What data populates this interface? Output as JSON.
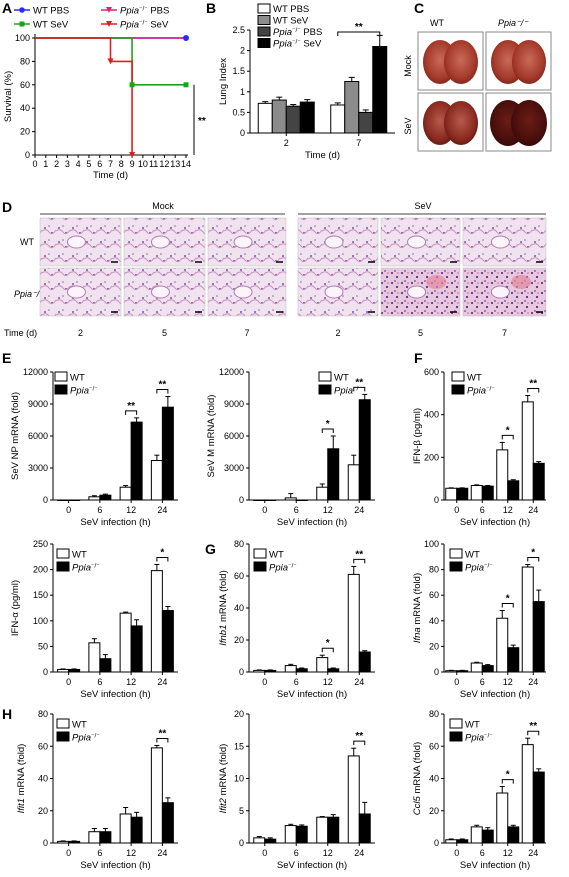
{
  "panels": {
    "A": "A",
    "B": "B",
    "C": "C",
    "D": "D",
    "E": "E",
    "F": "F",
    "G": "G",
    "H": "H"
  },
  "colors": {
    "wt_pbs": "#2a2aff",
    "wt_sev": "#1fa01f",
    "ko_pbs": "#e0207a",
    "ko_sev": "#e01e1e",
    "gray": "#8c8c8c",
    "dark": "#444444",
    "black": "#000000",
    "white": "#ffffff"
  },
  "panel_C": {
    "col_labels": [
      "WT",
      "Ppia⁻/⁻"
    ],
    "row_labels": [
      "Mock",
      "SeV"
    ]
  },
  "panel_D": {
    "groups": [
      "Mock",
      "SeV"
    ],
    "row_labels": [
      "WT",
      "Ppia⁻/⁻"
    ],
    "time_label": "Time (d)",
    "times": [
      "2",
      "5",
      "7",
      "2",
      "5",
      "7"
    ]
  },
  "chart_data": [
    {
      "id": "A",
      "type": "line",
      "ylabel": "Survival (%)",
      "xlabel": "Time (d)",
      "xlim": [
        0,
        14
      ],
      "ylim": [
        0,
        100
      ],
      "xticks": [
        0,
        1,
        2,
        3,
        4,
        5,
        6,
        7,
        8,
        9,
        10,
        11,
        12,
        13,
        14
      ],
      "yticks": [
        0,
        20,
        40,
        60,
        80,
        100
      ],
      "legend": [
        "WT PBS",
        "Ppia⁻/⁻ PBS",
        "WT SeV",
        "Ppia⁻/⁻ SeV"
      ],
      "series": [
        {
          "name": "WT PBS",
          "color": "#2a2aff",
          "steps": [
            [
              0,
              100
            ],
            [
              14,
              100
            ]
          ]
        },
        {
          "name": "Ppia⁻/⁻ PBS",
          "color": "#e0207a",
          "steps": [
            [
              0,
              100
            ],
            [
              14,
              100
            ]
          ]
        },
        {
          "name": "WT SeV",
          "color": "#1fa01f",
          "steps": [
            [
              0,
              100
            ],
            [
              9,
              100
            ],
            [
              9,
              60
            ],
            [
              14,
              60
            ]
          ]
        },
        {
          "name": "Ppia⁻/⁻ SeV",
          "color": "#e01e1e",
          "steps": [
            [
              0,
              100
            ],
            [
              7,
              100
            ],
            [
              7,
              80
            ],
            [
              9,
              80
            ],
            [
              9,
              0
            ]
          ]
        }
      ],
      "annotation": "**"
    },
    {
      "id": "B",
      "type": "bar",
      "ylabel": "Lung Index",
      "xlabel": "Time (d)",
      "categories": [
        "2",
        "7"
      ],
      "ylim": [
        0,
        2.5
      ],
      "yticks": [
        0,
        0.5,
        1.0,
        1.5,
        2.0,
        2.5
      ],
      "legend": [
        "WT PBS",
        "WT SeV",
        "Ppia⁻/⁻ PBS",
        "Ppia⁻/⁻ SeV"
      ],
      "series": [
        {
          "name": "WT PBS",
          "fill": "#ffffff",
          "values": [
            0.72,
            0.68
          ],
          "err": [
            0.04,
            0.05
          ]
        },
        {
          "name": "WT SeV",
          "fill": "#8c8c8c",
          "values": [
            0.8,
            1.25
          ],
          "err": [
            0.07,
            0.1
          ]
        },
        {
          "name": "Ppia⁻/⁻ PBS",
          "fill": "#444444",
          "values": [
            0.65,
            0.5
          ],
          "err": [
            0.04,
            0.06
          ]
        },
        {
          "name": "Ppia⁻/⁻ SeV",
          "fill": "#000000",
          "values": [
            0.75,
            2.1
          ],
          "err": [
            0.06,
            0.27
          ]
        }
      ],
      "sig": [
        {
          "category": 1,
          "from": 0,
          "to": 3,
          "label": "**"
        }
      ]
    },
    {
      "id": "E1",
      "type": "bar",
      "ylabel": "SeV NP mRNA (fold)",
      "xlabel": "SeV infection (h)",
      "categories": [
        "0",
        "6",
        "12",
        "24"
      ],
      "ylim": [
        0,
        12000
      ],
      "yticks": [
        0,
        3000,
        6000,
        9000,
        12000
      ],
      "series": [
        {
          "name": "WT",
          "values": [
            0,
            300,
            1200,
            3700
          ],
          "err": [
            0,
            100,
            150,
            500
          ]
        },
        {
          "name": "Ppia⁻/⁻",
          "values": [
            0,
            450,
            7300,
            8700
          ],
          "err": [
            0,
            100,
            400,
            1000
          ]
        }
      ],
      "sig": [
        {
          "category": 2,
          "label": "**"
        },
        {
          "category": 3,
          "label": "**"
        }
      ]
    },
    {
      "id": "E2",
      "type": "bar",
      "ylabel": "SeV M mRNA (fold)",
      "xlabel": "SeV infection (h)",
      "categories": [
        "0",
        "6",
        "12",
        "24"
      ],
      "ylim": [
        0,
        12000
      ],
      "yticks": [
        0,
        3000,
        6000,
        9000,
        12000
      ],
      "series": [
        {
          "name": "WT",
          "values": [
            0,
            200,
            1200,
            3300
          ],
          "err": [
            0,
            400,
            300,
            900
          ]
        },
        {
          "name": "Ppia⁻/⁻",
          "values": [
            0,
            0,
            4800,
            9400
          ],
          "err": [
            0,
            0,
            1200,
            500
          ]
        }
      ],
      "sig": [
        {
          "category": 2,
          "label": "*"
        },
        {
          "category": 3,
          "label": "**"
        }
      ]
    },
    {
      "id": "F",
      "type": "bar",
      "ylabel": "IFN-β (pg/ml)",
      "xlabel": "SeV infection (h)",
      "categories": [
        "0",
        "6",
        "12",
        "24"
      ],
      "ylim": [
        0,
        600
      ],
      "yticks": [
        0,
        200,
        400,
        600
      ],
      "series": [
        {
          "name": "WT",
          "values": [
            55,
            68,
            235,
            460
          ],
          "err": [
            2,
            3,
            35,
            30
          ]
        },
        {
          "name": "Ppia⁻/⁻",
          "values": [
            55,
            65,
            90,
            172
          ],
          "err": [
            2,
            3,
            5,
            8
          ]
        }
      ],
      "sig": [
        {
          "category": 2,
          "label": "*"
        },
        {
          "category": 3,
          "label": "**"
        }
      ]
    },
    {
      "id": "F2",
      "type": "bar",
      "ylabel": "IFN-α (pg/ml)",
      "xlabel": "SeV infection (h)",
      "categories": [
        "0",
        "6",
        "12",
        "24"
      ],
      "ylim": [
        0,
        250
      ],
      "yticks": [
        0,
        50,
        100,
        150,
        200,
        250
      ],
      "series": [
        {
          "name": "WT",
          "values": [
            5,
            57,
            115,
            198
          ],
          "err": [
            1,
            8,
            2,
            12
          ]
        },
        {
          "name": "Ppia⁻/⁻",
          "values": [
            5,
            26,
            90,
            120
          ],
          "err": [
            1,
            8,
            12,
            8
          ]
        }
      ],
      "sig": [
        {
          "category": 3,
          "label": "*"
        }
      ]
    },
    {
      "id": "G1",
      "type": "bar",
      "ylabel": "Ifnb1 mRNA (fold)",
      "xlabel": "SeV infection (h)",
      "categories": [
        "0",
        "6",
        "12",
        "24"
      ],
      "ylim": [
        0,
        80
      ],
      "yticks": [
        0,
        20,
        40,
        60,
        80
      ],
      "series": [
        {
          "name": "WT",
          "values": [
            1,
            4,
            9,
            61
          ],
          "err": [
            0.3,
            0.8,
            1.5,
            5
          ]
        },
        {
          "name": "Ppia⁻/⁻",
          "values": [
            1,
            2,
            2,
            12.5
          ],
          "err": [
            0.3,
            0.5,
            0.5,
            0.8
          ]
        }
      ],
      "sig": [
        {
          "category": 2,
          "label": "*"
        },
        {
          "category": 3,
          "label": "**"
        }
      ]
    },
    {
      "id": "G2",
      "type": "bar",
      "ylabel": "Ifna mRNA (fold)",
      "xlabel": "SeV infection (h)",
      "categories": [
        "0",
        "6",
        "12",
        "24"
      ],
      "ylim": [
        0,
        100
      ],
      "yticks": [
        0,
        20,
        40,
        60,
        80,
        100
      ],
      "series": [
        {
          "name": "WT",
          "values": [
            1,
            7,
            42,
            82
          ],
          "err": [
            0.3,
            0.6,
            6,
            2
          ]
        },
        {
          "name": "Ppia⁻/⁻",
          "values": [
            1,
            5,
            19,
            55
          ],
          "err": [
            0.3,
            0.8,
            2,
            9
          ]
        }
      ],
      "sig": [
        {
          "category": 2,
          "label": "*"
        },
        {
          "category": 3,
          "label": "*"
        }
      ]
    },
    {
      "id": "H1",
      "type": "bar",
      "ylabel": "Ifit1 mRNA (fold)",
      "xlabel": "SeV infection (h)",
      "categories": [
        "0",
        "6",
        "12",
        "24"
      ],
      "ylim": [
        0,
        80
      ],
      "yticks": [
        0,
        20,
        40,
        60,
        80
      ],
      "series": [
        {
          "name": "WT",
          "values": [
            1,
            7,
            18,
            59
          ],
          "err": [
            0.3,
            2,
            4,
            1.5
          ]
        },
        {
          "name": "Ppia⁻/⁻",
          "values": [
            1,
            7,
            16,
            25
          ],
          "err": [
            0.3,
            2,
            3,
            3
          ]
        }
      ],
      "sig": [
        {
          "category": 3,
          "label": "**"
        }
      ]
    },
    {
      "id": "H2",
      "type": "bar",
      "ylabel": "Ifit2 mRNA (fold)",
      "xlabel": "SeV infection (h)",
      "categories": [
        "0",
        "6",
        "12",
        "24"
      ],
      "ylim": [
        0,
        20
      ],
      "yticks": [
        0,
        5,
        10,
        15,
        20
      ],
      "series": [
        {
          "name": "WT",
          "values": [
            0.8,
            2.7,
            4,
            13.5
          ],
          "err": [
            0.2,
            0.2,
            0.1,
            1.2
          ]
        },
        {
          "name": "Ppia⁻/⁻",
          "values": [
            0.6,
            2.6,
            4,
            4.5
          ],
          "err": [
            0.2,
            0.2,
            0.4,
            1.8
          ]
        }
      ],
      "sig": [
        {
          "category": 3,
          "label": "**"
        }
      ]
    },
    {
      "id": "H3",
      "type": "bar",
      "ylabel": "Ccl5 mRNA (fold)",
      "xlabel": "SeV infection (h)",
      "categories": [
        "0",
        "6",
        "12",
        "24"
      ],
      "ylim": [
        0,
        80
      ],
      "yticks": [
        0,
        20,
        40,
        60,
        80
      ],
      "series": [
        {
          "name": "WT",
          "values": [
            2,
            10,
            31,
            61
          ],
          "err": [
            0.5,
            1,
            4,
            4
          ]
        },
        {
          "name": "Ppia⁻/⁻",
          "values": [
            2,
            8,
            10,
            44
          ],
          "err": [
            0.5,
            1.5,
            1,
            2
          ]
        }
      ],
      "sig": [
        {
          "category": 2,
          "label": "*"
        },
        {
          "category": 3,
          "label": "**"
        }
      ]
    }
  ]
}
